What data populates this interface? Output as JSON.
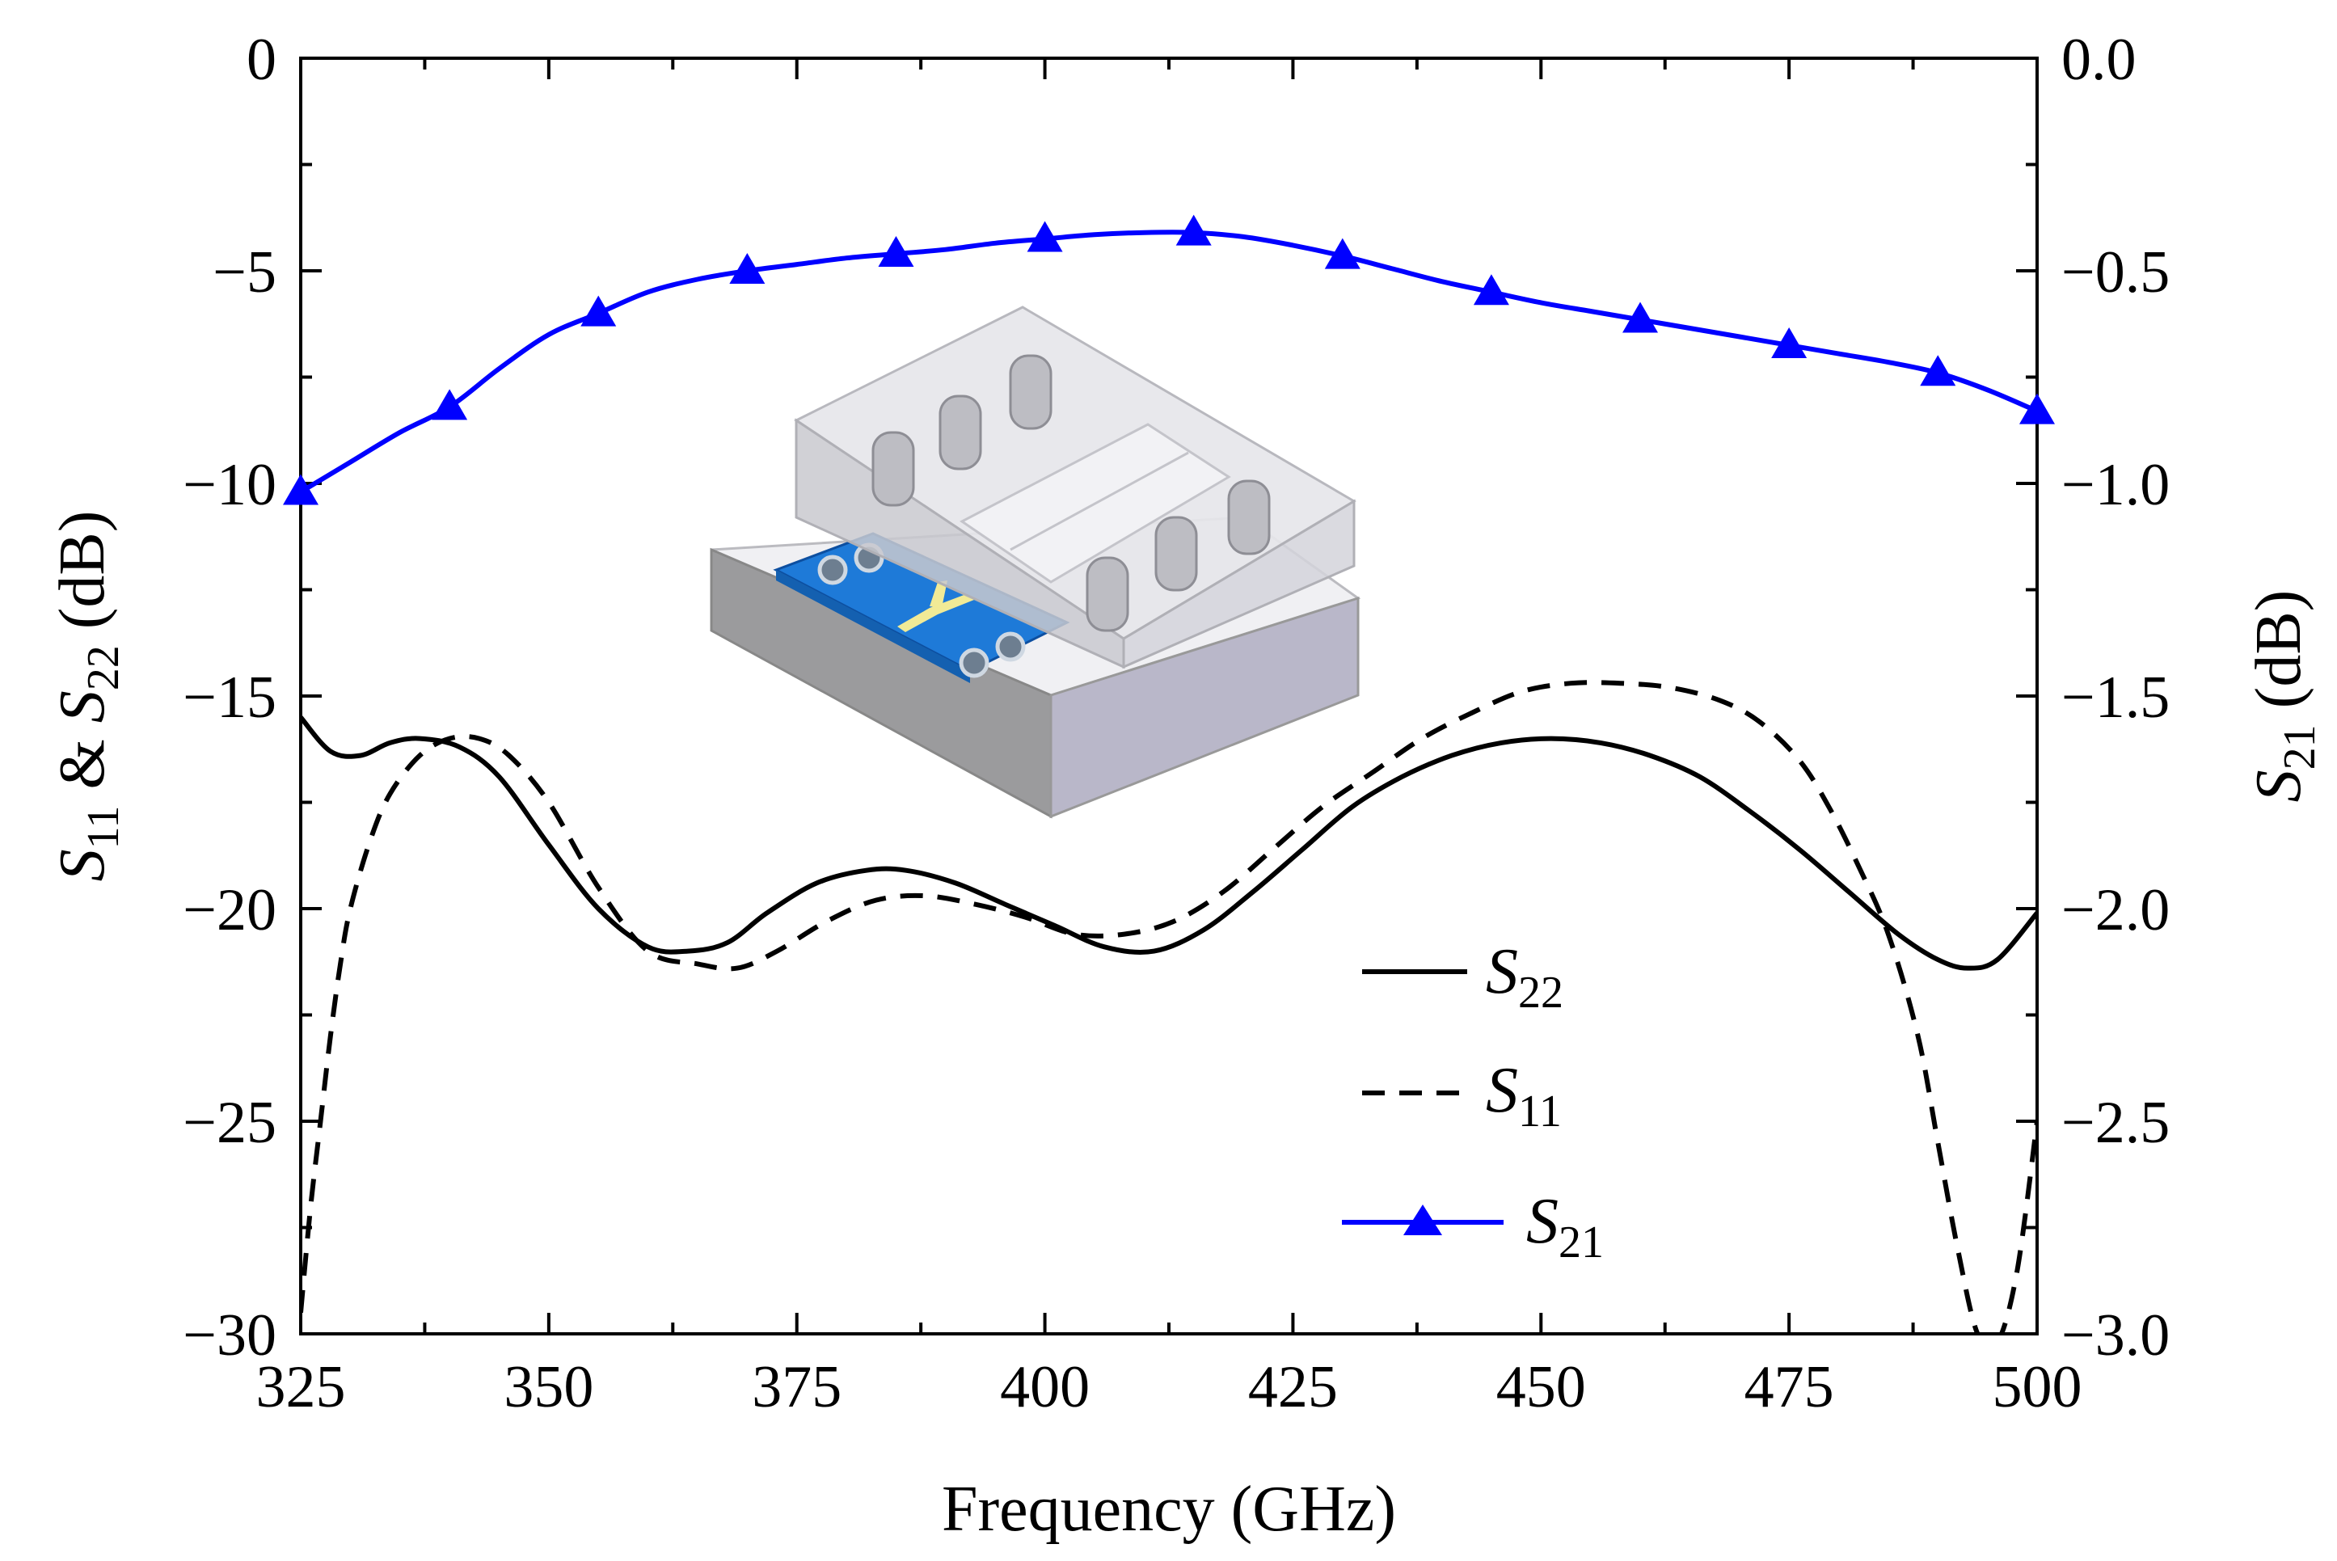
{
  "chart_data": {
    "type": "line",
    "xlabel": "Frequency (GHz)",
    "ylabel": {
      "s1": "S",
      "s1_sub": "11",
      "amp": " & ",
      "s2": "S",
      "s2_sub": "22",
      "unit": " (dB)"
    },
    "y2label": {
      "s": "S",
      "s_sub": "21",
      "unit": " (dB)"
    },
    "xlim": [
      325,
      500
    ],
    "ylim": [
      -30,
      0
    ],
    "y2lim": [
      -3.0,
      0.0
    ],
    "xticks": [
      325,
      350,
      375,
      400,
      425,
      450,
      475,
      500
    ],
    "xtick_labels": [
      "325",
      "350",
      "375",
      "400",
      "425",
      "450",
      "475",
      "500"
    ],
    "yticks": [
      0,
      -5,
      -10,
      -15,
      -20,
      -25,
      -30
    ],
    "ytick_labels": [
      "0",
      "−5",
      "−10",
      "−15",
      "−20",
      "−25",
      "−30"
    ],
    "y2ticks": [
      0.0,
      -0.5,
      -1.0,
      -1.5,
      -2.0,
      -2.5,
      -3.0
    ],
    "y2tick_labels": [
      "0.0",
      "−0.5",
      "−1.0",
      "−1.5",
      "−2.0",
      "−2.5",
      "−3.0"
    ],
    "grid": false,
    "legend_position": "lower-right",
    "series": [
      {
        "name": "S22",
        "name_main": "S",
        "name_sub": "22",
        "axis": "left",
        "style": "solid",
        "color": "#000000",
        "x": [
          325,
          328,
          331,
          334,
          337,
          341,
          345,
          350,
          355,
          360,
          364,
          368,
          372,
          377,
          382,
          386,
          391,
          396,
          401,
          406,
          411,
          416,
          421,
          426,
          431,
          436,
          441,
          446,
          451,
          456,
          461,
          466,
          471,
          476,
          481,
          486,
          490,
          493,
          496,
          500
        ],
        "y": [
          -15.5,
          -16.3,
          -16.4,
          -16.1,
          -16.0,
          -16.2,
          -16.9,
          -18.5,
          -20.0,
          -20.9,
          -21.0,
          -20.8,
          -20.1,
          -19.4,
          -19.1,
          -19.1,
          -19.4,
          -19.9,
          -20.4,
          -20.9,
          -21.0,
          -20.5,
          -19.6,
          -18.6,
          -17.6,
          -16.9,
          -16.4,
          -16.1,
          -16.0,
          -16.1,
          -16.4,
          -16.9,
          -17.7,
          -18.6,
          -19.6,
          -20.6,
          -21.2,
          -21.4,
          -21.2,
          -20.1
        ]
      },
      {
        "name": "S11",
        "name_main": "S",
        "name_sub": "11",
        "axis": "left",
        "style": "dashed",
        "color": "#000000",
        "x": [
          325,
          326,
          327,
          328,
          329,
          330,
          332,
          334,
          337,
          340,
          343,
          346,
          350,
          355,
          360,
          365,
          369,
          373,
          378,
          383,
          388,
          393,
          398,
          403,
          408,
          413,
          418,
          423,
          428,
          433,
          438,
          443,
          448,
          453,
          458,
          463,
          468,
          472,
          476,
          479,
          482,
          485,
          488,
          490,
          492,
          494,
          496,
          498,
          500
        ],
        "y": [
          -29.5,
          -27.0,
          -25.0,
          -23.0,
          -21.3,
          -20.0,
          -18.4,
          -17.3,
          -16.4,
          -16.0,
          -16.0,
          -16.4,
          -17.5,
          -19.5,
          -21.0,
          -21.3,
          -21.4,
          -21.0,
          -20.3,
          -19.8,
          -19.7,
          -19.9,
          -20.2,
          -20.6,
          -20.6,
          -20.3,
          -19.6,
          -18.6,
          -17.6,
          -16.8,
          -16.0,
          -15.4,
          -14.9,
          -14.7,
          -14.7,
          -14.8,
          -15.1,
          -15.6,
          -16.5,
          -17.6,
          -19.0,
          -20.6,
          -23.0,
          -25.5,
          -28.0,
          -30.0,
          -30.2,
          -28.5,
          -25.0
        ]
      },
      {
        "name": "S21",
        "name_main": "S",
        "name_sub": "21",
        "axis": "right",
        "style": "solid-triangle-markers",
        "color": "#0000ff",
        "x": [
          325,
          330,
          335,
          340,
          345,
          350,
          355,
          360,
          365,
          370,
          375,
          380,
          385,
          390,
          395,
          400,
          405,
          410,
          415,
          420,
          425,
          430,
          435,
          440,
          445,
          450,
          455,
          460,
          465,
          470,
          475,
          480,
          485,
          490,
          495,
          500
        ],
        "y": [
          -1.02,
          -0.95,
          -0.88,
          -0.82,
          -0.73,
          -0.65,
          -0.6,
          -0.55,
          -0.52,
          -0.5,
          -0.485,
          -0.47,
          -0.46,
          -0.45,
          -0.435,
          -0.425,
          -0.415,
          -0.41,
          -0.41,
          -0.42,
          -0.44,
          -0.465,
          -0.495,
          -0.525,
          -0.55,
          -0.575,
          -0.595,
          -0.615,
          -0.635,
          -0.655,
          -0.675,
          -0.695,
          -0.715,
          -0.74,
          -0.78,
          -0.83
        ],
        "markers_x": [
          325,
          340,
          355,
          370,
          385,
          400,
          415,
          430,
          445,
          460,
          475,
          490,
          500
        ],
        "markers_y": [
          -1.02,
          -0.82,
          -0.6,
          -0.5,
          -0.46,
          -0.425,
          -0.41,
          -0.465,
          -0.55,
          -0.615,
          -0.675,
          -0.74,
          -0.83
        ]
      }
    ]
  }
}
